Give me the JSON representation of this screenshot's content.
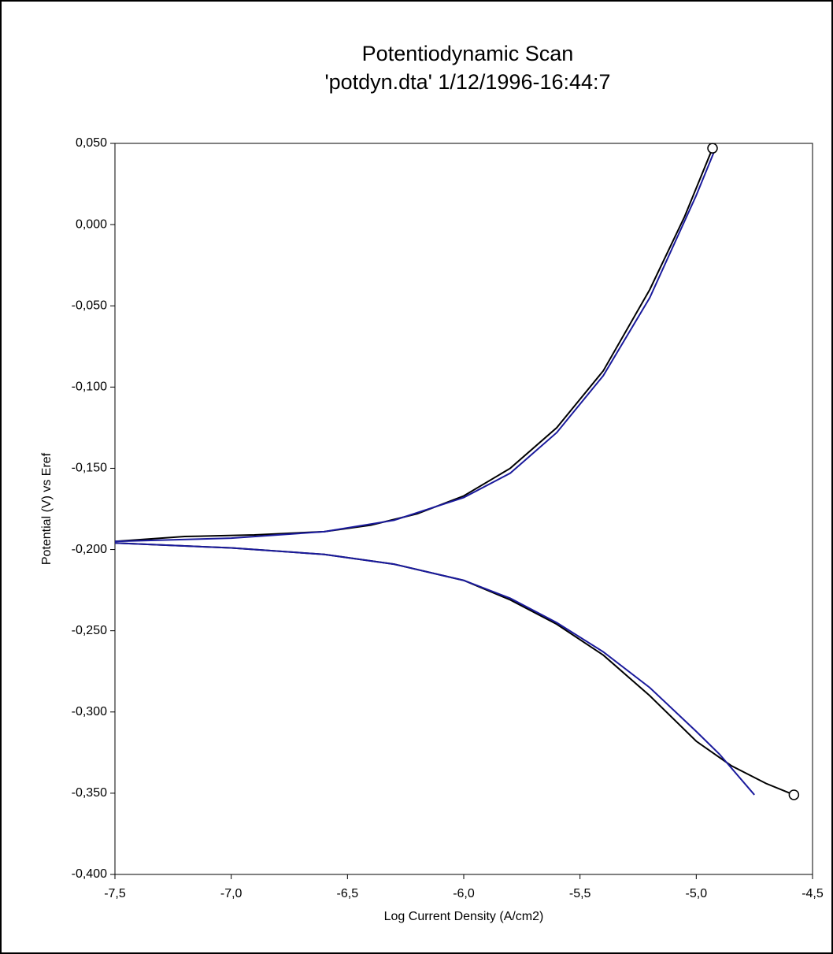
{
  "chart_data": {
    "type": "line",
    "title": "Potentiodynamic Scan",
    "subtitle": "'potdyn.dta' 1/12/1996-16:44:7",
    "x_label": "Log Current Density (A/cm2)",
    "y_label": "Potential (V) vs Eref",
    "xlim": [
      -7.5,
      -4.5
    ],
    "ylim": [
      -0.4,
      0.05
    ],
    "xticks": [
      {
        "value": -7.5,
        "label": "-7,5"
      },
      {
        "value": -7.0,
        "label": "-7,0"
      },
      {
        "value": -6.5,
        "label": "-6,5"
      },
      {
        "value": -6.0,
        "label": "-6,0"
      },
      {
        "value": -5.5,
        "label": "-5,5"
      },
      {
        "value": -5.0,
        "label": "-5,0"
      },
      {
        "value": -4.5,
        "label": "-4,5"
      }
    ],
    "yticks": [
      {
        "value": 0.05,
        "label": "0,050"
      },
      {
        "value": 0.0,
        "label": "0,000"
      },
      {
        "value": -0.05,
        "label": "-0,050"
      },
      {
        "value": -0.1,
        "label": "-0,100"
      },
      {
        "value": -0.15,
        "label": "-0,150"
      },
      {
        "value": -0.2,
        "label": "-0,200"
      },
      {
        "value": -0.25,
        "label": "-0,250"
      },
      {
        "value": -0.3,
        "label": "-0,300"
      },
      {
        "value": -0.35,
        "label": "-0,350"
      },
      {
        "value": -0.4,
        "label": "-0,400"
      }
    ],
    "grid": false,
    "series": [
      {
        "color": "#000000",
        "line": true,
        "x": [
          -7.5,
          -7.2,
          -6.9,
          -6.6,
          -6.4,
          -6.2,
          -6.0,
          -5.8,
          -5.6,
          -5.4,
          -5.2,
          -5.05,
          -4.93
        ],
        "values": [
          -0.195,
          -0.192,
          -0.191,
          -0.189,
          -0.185,
          -0.178,
          -0.167,
          -0.15,
          -0.125,
          -0.09,
          -0.04,
          0.005,
          0.047
        ]
      },
      {
        "color": "#000000",
        "line": true,
        "x": [
          -7.5,
          -7.0,
          -6.6,
          -6.3,
          -6.0,
          -5.8,
          -5.6,
          -5.4,
          -5.2,
          -5.0,
          -4.85,
          -4.7,
          -4.58
        ],
        "values": [
          -0.196,
          -0.199,
          -0.203,
          -0.209,
          -0.219,
          -0.231,
          -0.246,
          -0.265,
          -0.29,
          -0.318,
          -0.333,
          -0.344,
          -0.351
        ]
      },
      {
        "color": "#1a1a9c",
        "line": true,
        "x": [
          -7.5,
          -7.0,
          -6.6,
          -6.3,
          -6.0,
          -5.8,
          -5.6,
          -5.4,
          -5.2,
          -5.0,
          -4.92
        ],
        "values": [
          -0.195,
          -0.193,
          -0.189,
          -0.182,
          -0.168,
          -0.153,
          -0.128,
          -0.093,
          -0.045,
          0.018,
          0.046
        ]
      },
      {
        "color": "#1a1a9c",
        "line": true,
        "x": [
          -7.5,
          -7.0,
          -6.6,
          -6.3,
          -6.0,
          -5.8,
          -5.6,
          -5.4,
          -5.2,
          -5.0,
          -4.9,
          -4.75
        ],
        "values": [
          -0.196,
          -0.199,
          -0.203,
          -0.209,
          -0.219,
          -0.23,
          -0.245,
          -0.263,
          -0.285,
          -0.312,
          -0.326,
          -0.351
        ]
      },
      {
        "color": "#000000",
        "line": false,
        "marker": "circle",
        "x": [
          -4.93,
          -4.58
        ],
        "values": [
          0.047,
          -0.351
        ]
      }
    ]
  }
}
